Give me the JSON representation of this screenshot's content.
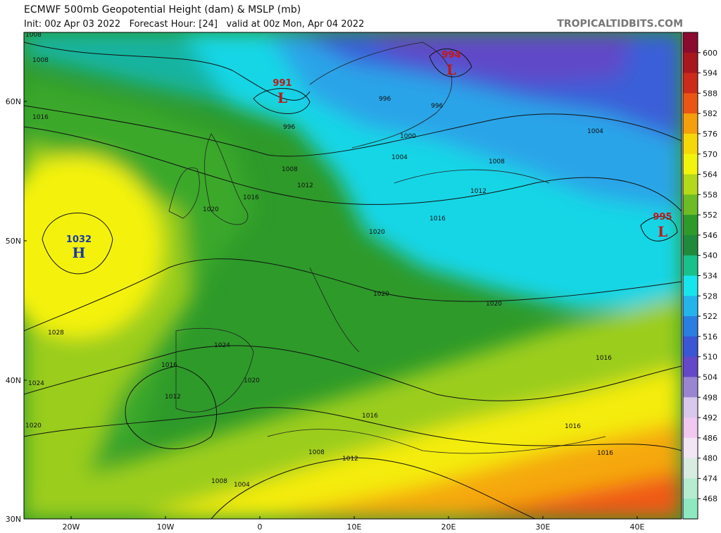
{
  "header": {
    "title": "ECMWF 500mb Geopotential Height (dam) & MSLP (mb)",
    "subtitle": "Init: 00z Apr 03 2022   Forecast Hour: [24]   valid at 00z Mon, Apr 04 2022",
    "source": "TROPICALTIDBITS.COM"
  },
  "map": {
    "lat_labels": [
      "60N",
      "50N",
      "40N",
      "30N"
    ],
    "lon_labels": [
      "20W",
      "10W",
      "0",
      "10E",
      "20E",
      "30E",
      "40E"
    ],
    "centers": [
      {
        "value": "991",
        "symbol": "L"
      },
      {
        "value": "994",
        "symbol": "L"
      },
      {
        "value": "995",
        "symbol": "L"
      },
      {
        "value": "1032",
        "symbol": "H"
      }
    ],
    "isobar_labels": [
      "1008",
      "1008",
      "1016",
      "996",
      "996",
      "996",
      "1000",
      "1004",
      "1004",
      "1008",
      "1008",
      "1012",
      "1012",
      "1016",
      "1016",
      "1020",
      "1020",
      "1020",
      "1020",
      "1028",
      "1024",
      "1024",
      "1020",
      "1016",
      "1012",
      "1020",
      "1016",
      "1016",
      "1016",
      "1008",
      "1012",
      "1008",
      "1004"
    ]
  },
  "colorbar": {
    "labels": [
      "600",
      "594",
      "588",
      "582",
      "576",
      "570",
      "564",
      "558",
      "552",
      "546",
      "540",
      "534",
      "528",
      "522",
      "516",
      "510",
      "504",
      "498",
      "492",
      "486",
      "480",
      "474",
      "468"
    ]
  }
}
